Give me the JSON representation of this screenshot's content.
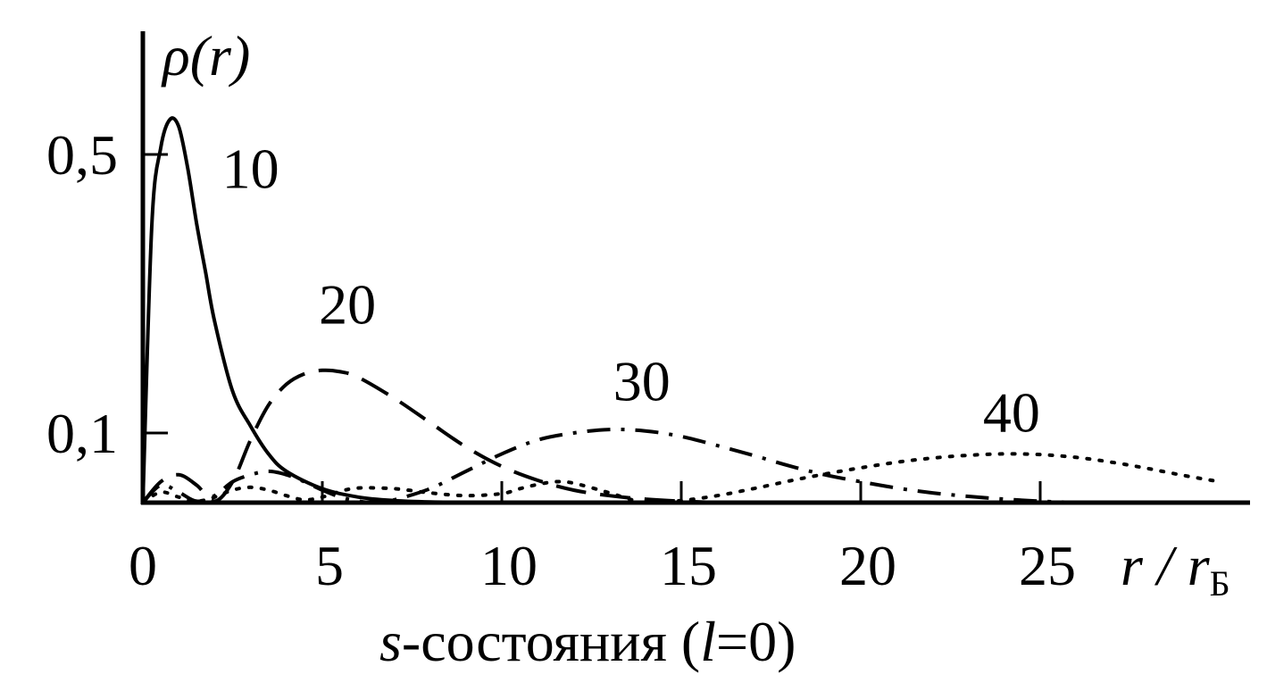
{
  "chart_data": {
    "type": "line",
    "title": "",
    "xlabel": "r / r",
    "xlabel_subscript": "Б",
    "ylabel": "ρ(r)",
    "caption_var": "s",
    "caption_text": "-состояния (",
    "caption_l": "l",
    "caption_end": "=0)",
    "xlim": [
      0,
      30
    ],
    "ylim": [
      0,
      0.6
    ],
    "x_ticks": [
      0,
      5,
      10,
      15,
      20,
      25
    ],
    "x_tick_labels": [
      "0",
      "5",
      "10",
      "15",
      "20",
      "25"
    ],
    "y_ticks": [
      0.1,
      0.5
    ],
    "y_tick_labels": [
      "0,1",
      "0,5"
    ],
    "grid": false,
    "series": [
      {
        "name": "10",
        "style": "solid",
        "x": [
          0,
          0.25,
          0.5,
          0.75,
          1.0,
          1.25,
          1.5,
          1.75,
          2.0,
          2.5,
          3.0,
          3.5,
          4.0,
          5.0,
          6.0,
          7.0,
          8.0,
          9.0,
          10.0,
          11.0,
          12.0
        ],
        "y": [
          0,
          0.4,
          0.51,
          0.55,
          0.54,
          0.48,
          0.4,
          0.33,
          0.26,
          0.16,
          0.11,
          0.07,
          0.045,
          0.02,
          0.008,
          0.003,
          0.001,
          0.0005,
          0.0002,
          0.0001,
          0
        ]
      },
      {
        "name": "20",
        "style": "dashed",
        "x": [
          0,
          0.5,
          1.0,
          1.5,
          2.0,
          2.5,
          3.0,
          3.5,
          4.0,
          4.5,
          5.0,
          5.5,
          6.0,
          7.0,
          8.0,
          9.0,
          10.0,
          11.0,
          12.0,
          13.0,
          14.0,
          15.0,
          16.0
        ],
        "y": [
          0,
          0.03,
          0.04,
          0.025,
          0.002,
          0.03,
          0.09,
          0.14,
          0.17,
          0.185,
          0.19,
          0.188,
          0.18,
          0.15,
          0.115,
          0.08,
          0.052,
          0.032,
          0.018,
          0.01,
          0.005,
          0.002,
          0
        ]
      },
      {
        "name": "30",
        "style": "dashdot",
        "x": [
          0,
          0.5,
          1.0,
          1.5,
          2.0,
          2.5,
          3.0,
          3.5,
          4.0,
          4.5,
          5.0,
          5.5,
          6.0,
          6.5,
          7.0,
          8.0,
          9.0,
          10.0,
          11.0,
          12.0,
          13.0,
          14.0,
          15.0,
          16.0,
          17.0,
          18.0,
          19.0,
          20.0,
          21.0,
          22.0,
          23.0,
          24.0,
          25.0,
          26.0
        ],
        "y": [
          0,
          0.025,
          0.015,
          0.002,
          0.01,
          0.03,
          0.04,
          0.045,
          0.04,
          0.03,
          0.018,
          0.008,
          0.002,
          0.0,
          0.004,
          0.02,
          0.045,
          0.07,
          0.09,
          0.1,
          0.105,
          0.103,
          0.095,
          0.082,
          0.068,
          0.053,
          0.04,
          0.03,
          0.021,
          0.014,
          0.009,
          0.005,
          0.002,
          0
        ]
      },
      {
        "name": "40",
        "style": "dotted",
        "x": [
          0,
          0.5,
          1.0,
          1.5,
          2.0,
          2.5,
          3.0,
          3.5,
          4.0,
          4.5,
          5.0,
          5.5,
          6.0,
          7.0,
          8.0,
          9.0,
          10.0,
          10.5,
          11.0,
          11.5,
          12.0,
          13.0,
          13.5,
          14.0,
          15.0,
          16.0,
          17.0,
          18.0,
          19.0,
          20.0,
          21.0,
          22.0,
          23.0,
          24.0,
          25.0,
          26.0,
          27.0,
          28.0,
          29.0,
          30.0
        ],
        "y": [
          0,
          0.015,
          0.008,
          0.002,
          0.008,
          0.018,
          0.022,
          0.018,
          0.01,
          0.004,
          0.008,
          0.016,
          0.021,
          0.02,
          0.014,
          0.01,
          0.013,
          0.02,
          0.026,
          0.03,
          0.028,
          0.014,
          0.006,
          0.0,
          0.003,
          0.01,
          0.02,
          0.031,
          0.041,
          0.05,
          0.058,
          0.064,
          0.068,
          0.07,
          0.069,
          0.065,
          0.058,
          0.049,
          0.039,
          0.03
        ]
      }
    ],
    "annotations": [
      {
        "text": "10",
        "x": 3.0,
        "y": 0.48
      },
      {
        "text": "20",
        "x": 5.7,
        "y": 0.285
      },
      {
        "text": "30",
        "x": 13.9,
        "y": 0.175
      },
      {
        "text": "40",
        "x": 24.2,
        "y": 0.13
      }
    ]
  }
}
